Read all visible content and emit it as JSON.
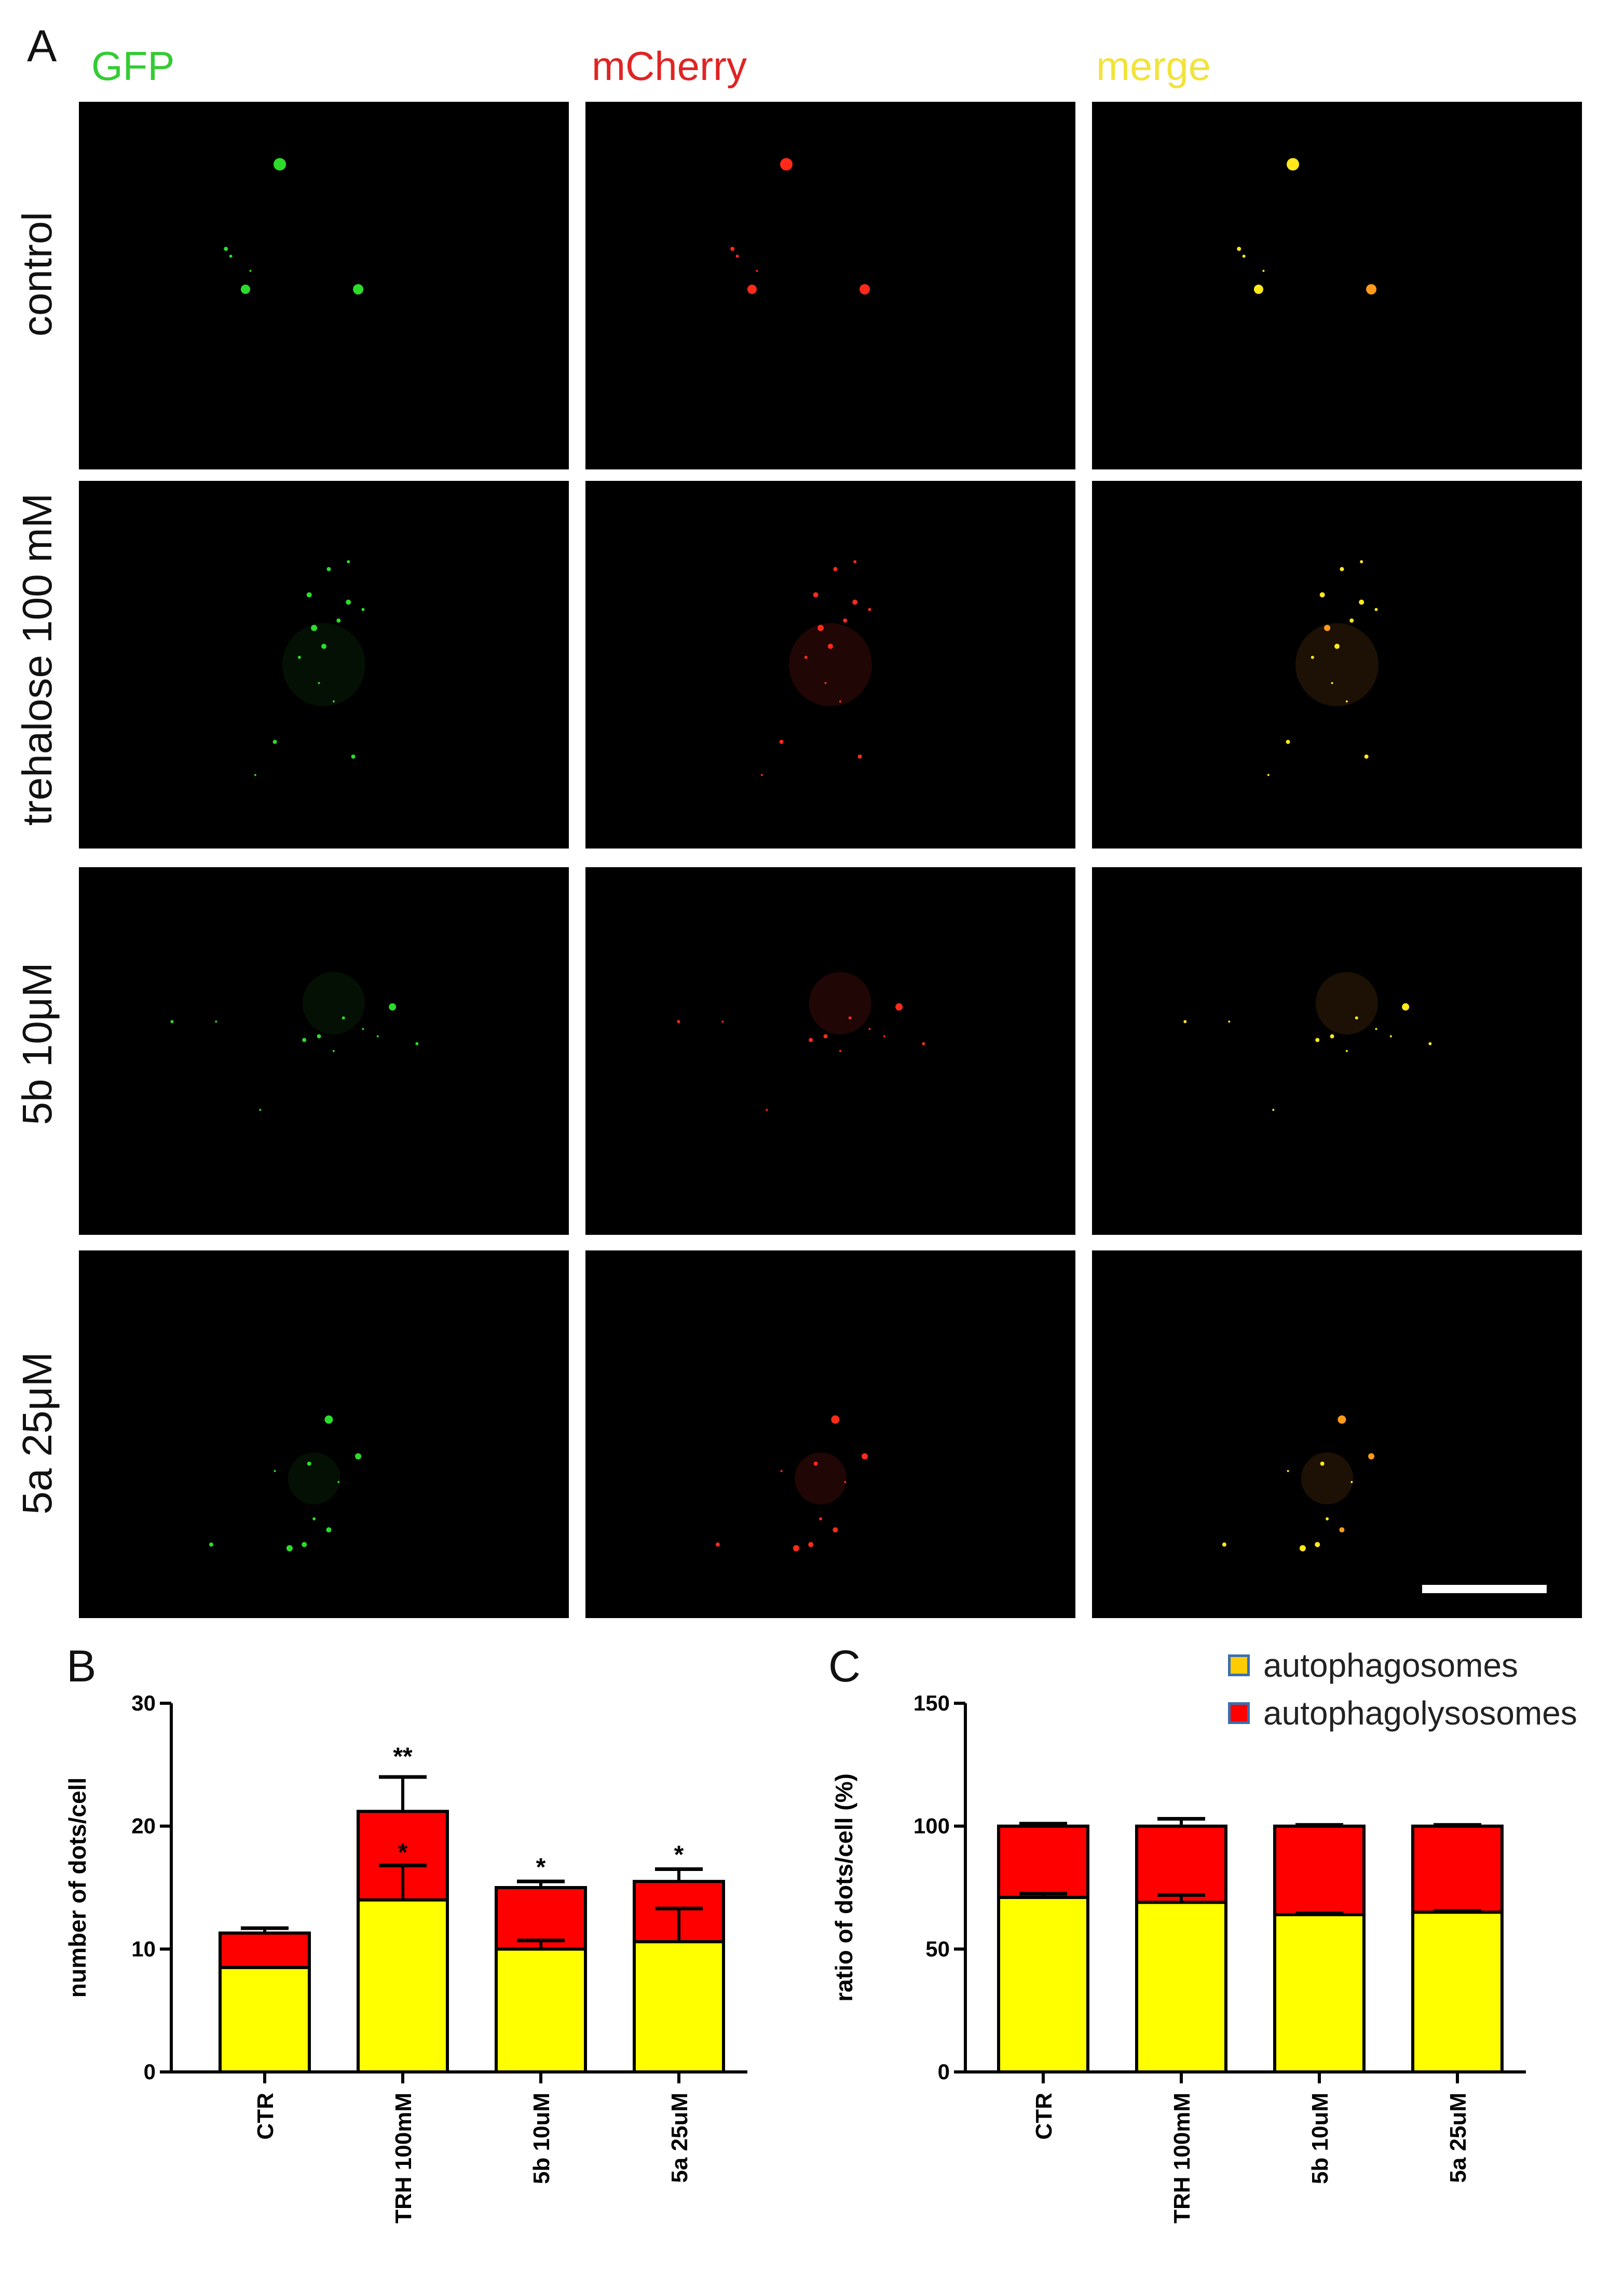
{
  "panels": {
    "a": "A",
    "b": "B",
    "c": "C"
  },
  "columns": [
    {
      "label": "GFP",
      "color": "#33cc33"
    },
    {
      "label": "mCherry",
      "color": "#e02424"
    },
    {
      "label": "merge",
      "color": "#f2e33a"
    }
  ],
  "rows": [
    "control",
    "trehalose 100 mM",
    "5b 10μM",
    "5a 25μM"
  ],
  "colors": {
    "autophagosomes": "#ffff00",
    "autophagolysosomes": "#ff0000"
  },
  "legend": [
    {
      "label": "autophagosomes",
      "color": "#ffcc00"
    },
    {
      "label": "autophagolysosomes",
      "color": "#ff0000"
    }
  ],
  "chart_data": [
    {
      "type": "bar",
      "stacked": true,
      "panel": "B",
      "categories": [
        "CTR",
        "TRH 100mM",
        "5b 10uM",
        "5a 25uM"
      ],
      "ylabel": "number of dots/cell",
      "ylim": [
        0,
        30
      ],
      "yticks": [
        0,
        10,
        20,
        30
      ],
      "series": [
        {
          "name": "autophagosomes",
          "values": [
            8.5,
            14,
            10,
            10.6
          ],
          "errors": [
            0,
            2.8,
            0.7,
            2.7
          ]
        },
        {
          "name": "autophagolysosomes",
          "values": [
            2.8,
            7.2,
            5,
            4.9
          ],
          "errors": [
            0.4,
            2.8,
            0.5,
            1
          ]
        }
      ],
      "annotations": [
        {
          "category": "TRH 100mM",
          "text": "**",
          "level": 25
        },
        {
          "category": "TRH 100mM",
          "text": "*",
          "level": 17.2
        },
        {
          "category": "5b 10uM",
          "text": "*",
          "level": 16
        },
        {
          "category": "5a 25uM",
          "text": "*",
          "level": 17
        }
      ]
    },
    {
      "type": "bar",
      "stacked": true,
      "panel": "C",
      "categories": [
        "CTR",
        "TRH 100mM",
        "5b 10uM",
        "5a 25uM"
      ],
      "ylabel": "ratio of dots/cell (%)",
      "ylim": [
        0,
        150
      ],
      "yticks": [
        0,
        50,
        100,
        150
      ],
      "series": [
        {
          "name": "autophagosomes",
          "values": [
            71,
            69,
            64,
            65
          ],
          "errors": [
            1.5,
            3,
            0.5,
            0.5
          ]
        },
        {
          "name": "autophagolysosomes",
          "values": [
            29,
            31,
            36,
            35
          ],
          "errors": [
            1,
            3,
            0.5,
            0.5
          ]
        }
      ],
      "annotations": []
    }
  ]
}
